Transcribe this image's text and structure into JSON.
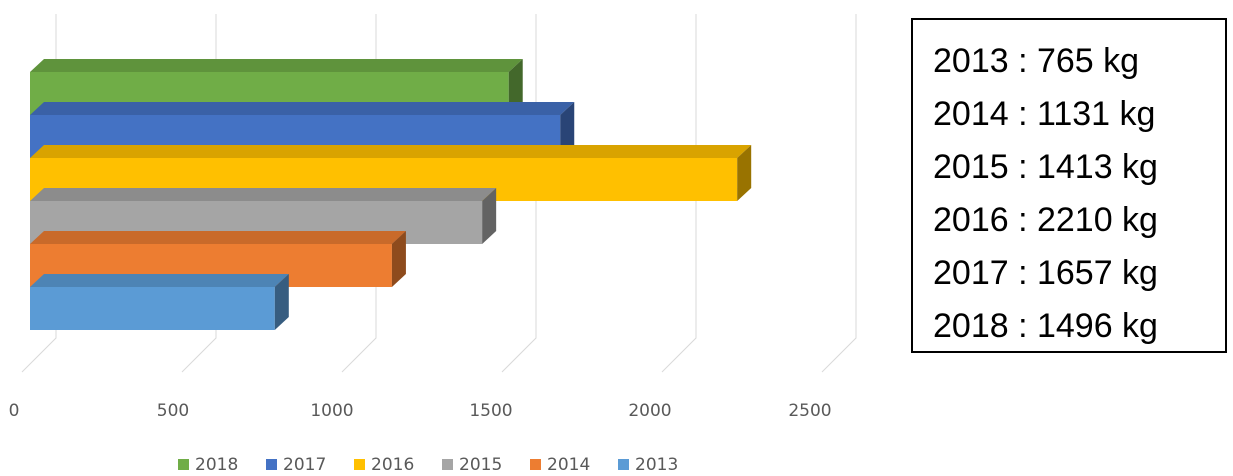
{
  "chart_data": {
    "type": "bar",
    "orientation": "horizontal",
    "style": "3d",
    "categories": [
      "2018",
      "2017",
      "2016",
      "2015",
      "2014",
      "2013"
    ],
    "values": [
      1496,
      1657,
      2210,
      1413,
      1131,
      765
    ],
    "colors": [
      "#70AD47",
      "#4472C4",
      "#FFC000",
      "#A5A5A5",
      "#ED7D31",
      "#5B9BD5"
    ],
    "xlim": [
      0,
      2500
    ],
    "xticks": [
      "0",
      "500",
      "1000",
      "1500",
      "2000",
      "2500"
    ],
    "grid": true,
    "legend": {
      "position": "bottom",
      "entries": [
        "2018",
        "2017",
        "2016",
        "2015",
        "2014",
        "2013"
      ]
    }
  },
  "totals_box": {
    "lines": [
      "2013 : 765 kg",
      "2014 : 1131 kg",
      "2015 : 1413 kg",
      "2016 : 2210 kg",
      "2017 : 1657 kg",
      "2018 : 1496 kg"
    ]
  }
}
